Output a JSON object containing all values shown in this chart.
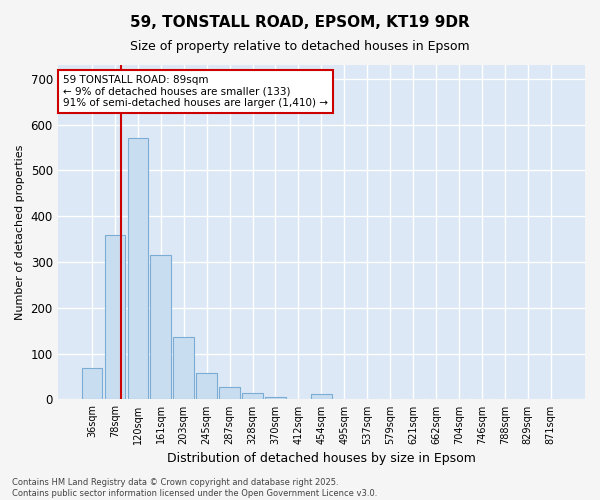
{
  "title1": "59, TONSTALL ROAD, EPSOM, KT19 9DR",
  "title2": "Size of property relative to detached houses in Epsom",
  "xlabel": "Distribution of detached houses by size in Epsom",
  "ylabel": "Number of detached properties",
  "categories": [
    "36sqm",
    "78sqm",
    "120sqm",
    "161sqm",
    "203sqm",
    "245sqm",
    "287sqm",
    "328sqm",
    "370sqm",
    "412sqm",
    "454sqm",
    "495sqm",
    "537sqm",
    "579sqm",
    "621sqm",
    "662sqm",
    "704sqm",
    "746sqm",
    "788sqm",
    "829sqm",
    "871sqm"
  ],
  "values": [
    68,
    358,
    570,
    315,
    136,
    57,
    27,
    13,
    5,
    0,
    12,
    0,
    0,
    0,
    0,
    0,
    0,
    0,
    0,
    0,
    0
  ],
  "bar_color": "#c9ddf0",
  "bar_edge_color": "#7badd4",
  "annotation_box_text": "59 TONSTALL ROAD: 89sqm\n← 9% of detached houses are smaller (133)\n91% of semi-detached houses are larger (1,410) →",
  "annotation_box_color": "#ffffff",
  "annotation_box_edge_color": "#cc0000",
  "vline_color": "#cc0000",
  "ylim": [
    0,
    730
  ],
  "yticks": [
    0,
    100,
    200,
    300,
    400,
    500,
    600,
    700
  ],
  "plot_bg_color": "#dce8f5",
  "fig_bg_color": "#f5f5f5",
  "grid_color": "#ffffff",
  "footer1": "Contains HM Land Registry data © Crown copyright and database right 2025.",
  "footer2": "Contains public sector information licensed under the Open Government Licence v3.0.",
  "title1_fontsize": 11,
  "title2_fontsize": 9,
  "xlabel_fontsize": 9,
  "ylabel_fontsize": 8
}
